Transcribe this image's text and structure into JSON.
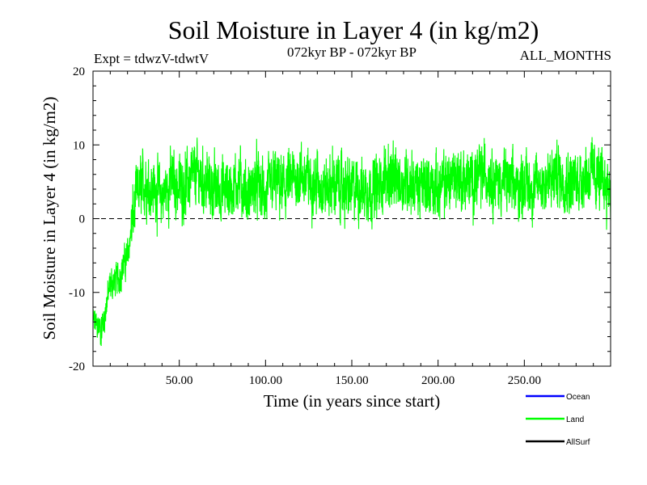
{
  "chart_data": {
    "type": "line",
    "title": "Soil Moisture in Layer 4 (in kg/m2)",
    "subtitle_left": "Expt = tdwzV-tdwtV",
    "subtitle_center": "072kyr BP - 072kyr BP",
    "subtitle_right": "ALL_MONTHS",
    "xlabel": "Time (in years since start)",
    "ylabel": "Soil Moisture in Layer 4 (in kg/m2)",
    "xlim": [
      0,
      300
    ],
    "ylim": [
      -20,
      20
    ],
    "x_ticks": [
      50,
      100,
      150,
      200,
      250
    ],
    "x_tick_labels": [
      "50.00",
      "100.00",
      "150.00",
      "200.00",
      "250.00"
    ],
    "y_ticks": [
      -20,
      -10,
      0,
      10,
      20
    ],
    "y_tick_labels": [
      "-20",
      "-10",
      "0",
      "10",
      "20"
    ],
    "zero_line": true,
    "legend_position": "bottom-right",
    "legend": [
      {
        "name": "Ocean",
        "color": "#0000ff"
      },
      {
        "name": "Land",
        "color": "#00ff00"
      },
      {
        "name": "AllSurf",
        "color": "#000000"
      }
    ],
    "series": [
      {
        "name": "Land",
        "color": "#00ff00",
        "x": [
          0,
          5,
          10,
          15,
          20,
          25,
          30,
          35,
          40,
          45,
          50,
          55,
          60,
          65,
          70,
          75,
          80,
          85,
          90,
          95,
          100,
          105,
          110,
          115,
          120,
          125,
          130,
          135,
          140,
          145,
          150,
          155,
          160,
          165,
          170,
          175,
          180,
          185,
          190,
          195,
          200,
          205,
          210,
          215,
          220,
          225,
          230,
          235,
          240,
          245,
          250,
          255,
          260,
          265,
          270,
          275,
          280,
          285,
          290,
          295,
          300
        ],
        "y": [
          -14,
          -15,
          -9,
          -8,
          -5,
          3,
          5,
          4,
          3,
          5,
          4,
          5,
          6,
          5,
          4,
          4,
          4,
          5,
          3,
          5,
          3,
          5,
          4,
          5,
          6,
          5,
          5,
          4,
          5,
          4,
          4,
          4,
          4,
          4,
          6,
          5,
          5,
          5,
          4,
          5,
          4,
          5,
          6,
          5,
          5,
          6,
          6,
          5,
          5,
          4,
          5,
          4,
          5,
          5,
          6,
          5,
          5,
          6,
          6,
          5,
          4
        ],
        "amplitude": 4.5,
        "samples": 3600
      }
    ]
  }
}
